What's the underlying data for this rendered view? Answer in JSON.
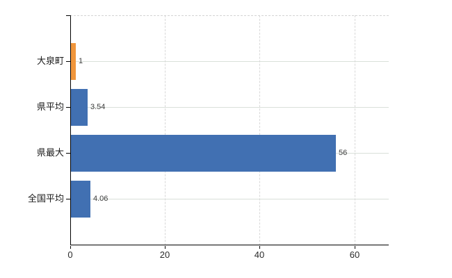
{
  "chart_data": {
    "type": "bar",
    "orientation": "horizontal",
    "title": "",
    "xlabel": "",
    "ylabel": "",
    "categories": [
      "大泉町",
      "県平均",
      "県最大",
      "全国平均"
    ],
    "values": [
      1,
      3.54,
      56,
      4.06
    ],
    "value_labels": [
      "1",
      "3.54",
      "56",
      "4.06"
    ],
    "bar_colors": [
      "#f0963c",
      "#4170b2",
      "#4170b2",
      "#4170b2"
    ],
    "x_ticks": [
      0,
      20,
      40,
      60
    ],
    "x_tick_labels": [
      "0",
      "20",
      "40",
      "60"
    ],
    "xlim": [
      0,
      67.3
    ],
    "grid": true,
    "legend": "none",
    "colors": {
      "accent_orange": "#f0963c",
      "accent_blue": "#4170b2",
      "gridline_horizontal": "#d9e0d9",
      "gridline_vertical": "#d8d8d8",
      "axis": "#000000",
      "background": "#ffffff"
    }
  }
}
